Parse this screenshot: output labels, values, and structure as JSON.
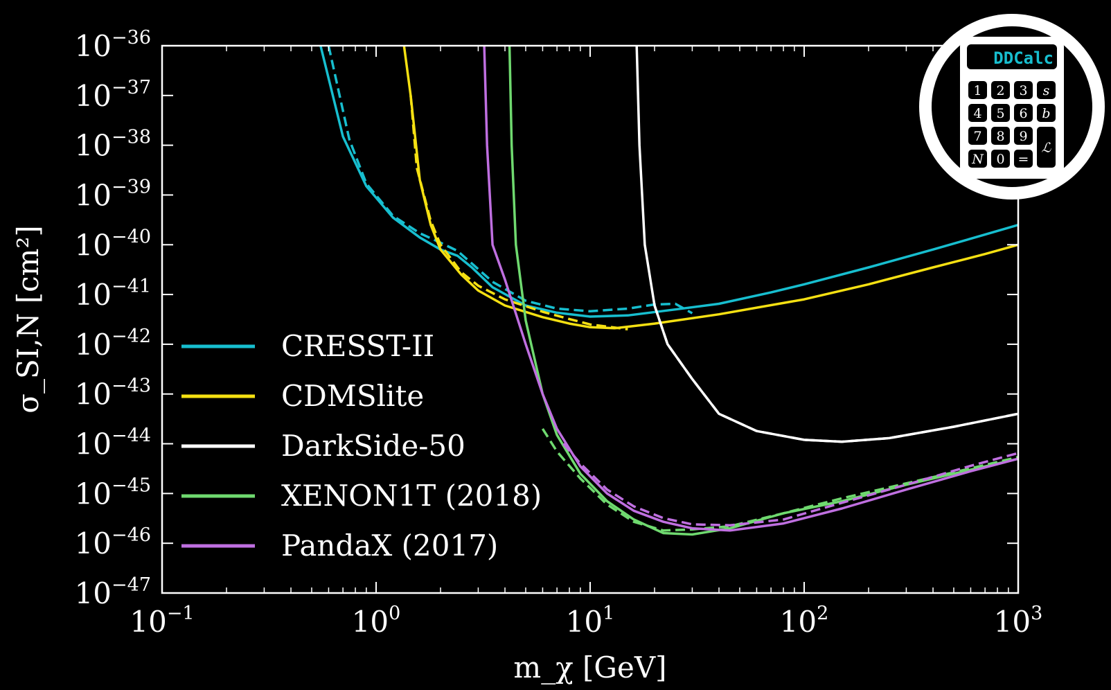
{
  "chart_data": {
    "type": "line",
    "xscale": "log",
    "yscale": "log",
    "xlim": [
      0.1,
      1000
    ],
    "ylim": [
      1e-47,
      1e-36
    ],
    "xlabel": "m_χ [GeV]",
    "ylabel": "σ_SI,N [cm²]",
    "xticks": [
      {
        "base": "10",
        "exp": "−1"
      },
      {
        "base": "10",
        "exp": "0"
      },
      {
        "base": "10",
        "exp": "1"
      },
      {
        "base": "10",
        "exp": "2"
      },
      {
        "base": "10",
        "exp": "3"
      }
    ],
    "yticks": [
      {
        "base": "10",
        "exp": "−36"
      },
      {
        "base": "10",
        "exp": "−37"
      },
      {
        "base": "10",
        "exp": "−38"
      },
      {
        "base": "10",
        "exp": "−39"
      },
      {
        "base": "10",
        "exp": "−40"
      },
      {
        "base": "10",
        "exp": "−41"
      },
      {
        "base": "10",
        "exp": "−42"
      },
      {
        "base": "10",
        "exp": "−43"
      },
      {
        "base": "10",
        "exp": "−44"
      },
      {
        "base": "10",
        "exp": "−45"
      },
      {
        "base": "10",
        "exp": "−46"
      },
      {
        "base": "10",
        "exp": "−47"
      }
    ],
    "legend_position": "lower-left",
    "grid": false,
    "series": [
      {
        "name": "CRESST-II",
        "color": "#17becf",
        "solid": [
          [
            0.55,
            1e-36
          ],
          [
            0.7,
            1.5e-38
          ],
          [
            0.9,
            1.5e-39
          ],
          [
            1.2,
            3.5e-40
          ],
          [
            1.6,
            1.4e-40
          ],
          [
            2.0,
            8e-41
          ],
          [
            2.4,
            6e-41
          ],
          [
            2.8,
            3.5e-41
          ],
          [
            3.5,
            1.4e-41
          ],
          [
            5,
            6e-42
          ],
          [
            7,
            4.3e-42
          ],
          [
            10,
            3.6e-42
          ],
          [
            15,
            3.8e-42
          ],
          [
            25,
            5e-42
          ],
          [
            40,
            6.5e-42
          ],
          [
            70,
            1.1e-41
          ],
          [
            100,
            1.6e-41
          ],
          [
            200,
            3.5e-41
          ],
          [
            400,
            8e-41
          ],
          [
            700,
            1.6e-40
          ],
          [
            1000,
            2.5e-40
          ]
        ],
        "dashed": [
          [
            0.6,
            1e-36
          ],
          [
            0.75,
            1.3e-38
          ],
          [
            0.9,
            1.7e-39
          ],
          [
            1.2,
            3.8e-40
          ],
          [
            1.6,
            1.7e-40
          ],
          [
            2.0,
            1.1e-40
          ],
          [
            2.4,
            7.5e-41
          ],
          [
            2.8,
            4.2e-41
          ],
          [
            3.5,
            1.8e-41
          ],
          [
            5,
            7.5e-42
          ],
          [
            7,
            5.2e-42
          ],
          [
            10,
            4.6e-42
          ],
          [
            15,
            5.2e-42
          ],
          [
            20,
            6.3e-42
          ],
          [
            25,
            6.5e-42
          ],
          [
            30,
            4.2e-42
          ]
        ]
      },
      {
        "name": "CDMSlite",
        "color": "#f5e012",
        "solid": [
          [
            1.35,
            1e-36
          ],
          [
            1.45,
            1e-37
          ],
          [
            1.6,
            2e-39
          ],
          [
            1.8,
            2.5e-40
          ],
          [
            2.0,
            8e-41
          ],
          [
            2.5,
            2.5e-41
          ],
          [
            3.0,
            1.2e-41
          ],
          [
            4,
            6e-42
          ],
          [
            6,
            3.5e-42
          ],
          [
            8,
            2.6e-42
          ],
          [
            10,
            2.2e-42
          ],
          [
            13,
            2.1e-42
          ],
          [
            20,
            2.6e-42
          ],
          [
            40,
            4e-42
          ],
          [
            100,
            8e-42
          ],
          [
            200,
            1.6e-41
          ],
          [
            400,
            3.5e-41
          ],
          [
            700,
            6.5e-41
          ],
          [
            1000,
            1e-40
          ]
        ],
        "dashed": [
          [
            1.45,
            1e-37
          ],
          [
            1.55,
            3.5e-39
          ],
          [
            1.8,
            3e-40
          ],
          [
            2.0,
            1e-40
          ],
          [
            2.5,
            2.8e-41
          ],
          [
            3.0,
            1.5e-41
          ],
          [
            4,
            8e-42
          ],
          [
            6,
            4.5e-42
          ],
          [
            8,
            3.2e-42
          ],
          [
            10,
            2.5e-42
          ],
          [
            15,
            2e-42
          ]
        ]
      },
      {
        "name": "DarkSide-50",
        "color": "#ffffff",
        "solid": [
          [
            16.5,
            1e-36
          ],
          [
            17,
            1e-38
          ],
          [
            18,
            1e-40
          ],
          [
            20,
            6e-42
          ],
          [
            23,
            1e-42
          ],
          [
            30,
            2e-43
          ],
          [
            40,
            4e-44
          ],
          [
            60,
            1.8e-44
          ],
          [
            100,
            1.2e-44
          ],
          [
            150,
            1.1e-44
          ],
          [
            250,
            1.3e-44
          ],
          [
            500,
            2.2e-44
          ],
          [
            1000,
            4e-44
          ]
        ],
        "dashed": [
          [
            20,
            6e-42
          ],
          [
            23,
            1e-42
          ],
          [
            30,
            2e-43
          ],
          [
            40,
            4e-44
          ],
          [
            60,
            1.8e-44
          ],
          [
            100,
            1.2e-44
          ],
          [
            150,
            1.1e-44
          ],
          [
            250,
            1.3e-44
          ],
          [
            500,
            2.2e-44
          ],
          [
            1000,
            4e-44
          ]
        ]
      },
      {
        "name": "XENON1T (2018)",
        "color": "#6fd96f",
        "solid": [
          [
            4.2,
            1e-36
          ],
          [
            4.3,
            1e-38
          ],
          [
            4.5,
            1e-40
          ],
          [
            5,
            3e-42
          ],
          [
            6,
            1e-43
          ],
          [
            7,
            1.5e-44
          ],
          [
            9,
            2.5e-45
          ],
          [
            12,
            7e-46
          ],
          [
            16,
            3e-46
          ],
          [
            22,
            1.6e-46
          ],
          [
            30,
            1.5e-46
          ],
          [
            45,
            2e-46
          ],
          [
            80,
            4e-46
          ],
          [
            150,
            7e-46
          ],
          [
            300,
            1.5e-45
          ],
          [
            600,
            3e-45
          ],
          [
            1000,
            5e-45
          ]
        ],
        "dashed": [
          [
            6,
            2e-44
          ],
          [
            7,
            7e-45
          ],
          [
            9,
            2e-45
          ],
          [
            12,
            6e-46
          ],
          [
            16,
            2.7e-46
          ],
          [
            22,
            1.8e-46
          ],
          [
            30,
            1.9e-46
          ],
          [
            45,
            2.2e-46
          ],
          [
            80,
            4e-46
          ],
          [
            150,
            8e-46
          ],
          [
            300,
            1.6e-45
          ],
          [
            600,
            3.2e-45
          ],
          [
            1000,
            5.4e-45
          ]
        ]
      },
      {
        "name": "PandaX (2017)",
        "color": "#bf6fe0",
        "solid": [
          [
            3.2,
            1e-36
          ],
          [
            3.3,
            1e-38
          ],
          [
            3.5,
            1e-40
          ],
          [
            4,
            2e-41
          ],
          [
            5,
            1e-42
          ],
          [
            6,
            1e-43
          ],
          [
            7,
            2e-44
          ],
          [
            9,
            3.5e-45
          ],
          [
            12,
            1e-45
          ],
          [
            16,
            4.5e-46
          ],
          [
            22,
            2.7e-46
          ],
          [
            30,
            2e-46
          ],
          [
            45,
            1.8e-46
          ],
          [
            80,
            2.5e-46
          ],
          [
            150,
            5e-46
          ],
          [
            300,
            1.2e-45
          ],
          [
            600,
            2.8e-45
          ],
          [
            1000,
            5e-45
          ]
        ],
        "dashed": [
          [
            7.5,
            1e-44
          ],
          [
            9,
            4e-45
          ],
          [
            12,
            1.2e-45
          ],
          [
            16,
            5.5e-46
          ],
          [
            22,
            3.2e-46
          ],
          [
            30,
            2.4e-46
          ],
          [
            45,
            2.3e-46
          ],
          [
            80,
            3e-46
          ],
          [
            150,
            6.5e-46
          ],
          [
            300,
            1.5e-45
          ],
          [
            600,
            3.6e-45
          ],
          [
            1000,
            6.5e-45
          ]
        ]
      }
    ]
  },
  "logo": {
    "screen_text": "DDCalc",
    "keys": [
      "1",
      "2",
      "3",
      "s",
      "4",
      "5",
      "6",
      "b",
      "7",
      "8",
      "9",
      "L",
      "N",
      "0",
      "="
    ]
  }
}
